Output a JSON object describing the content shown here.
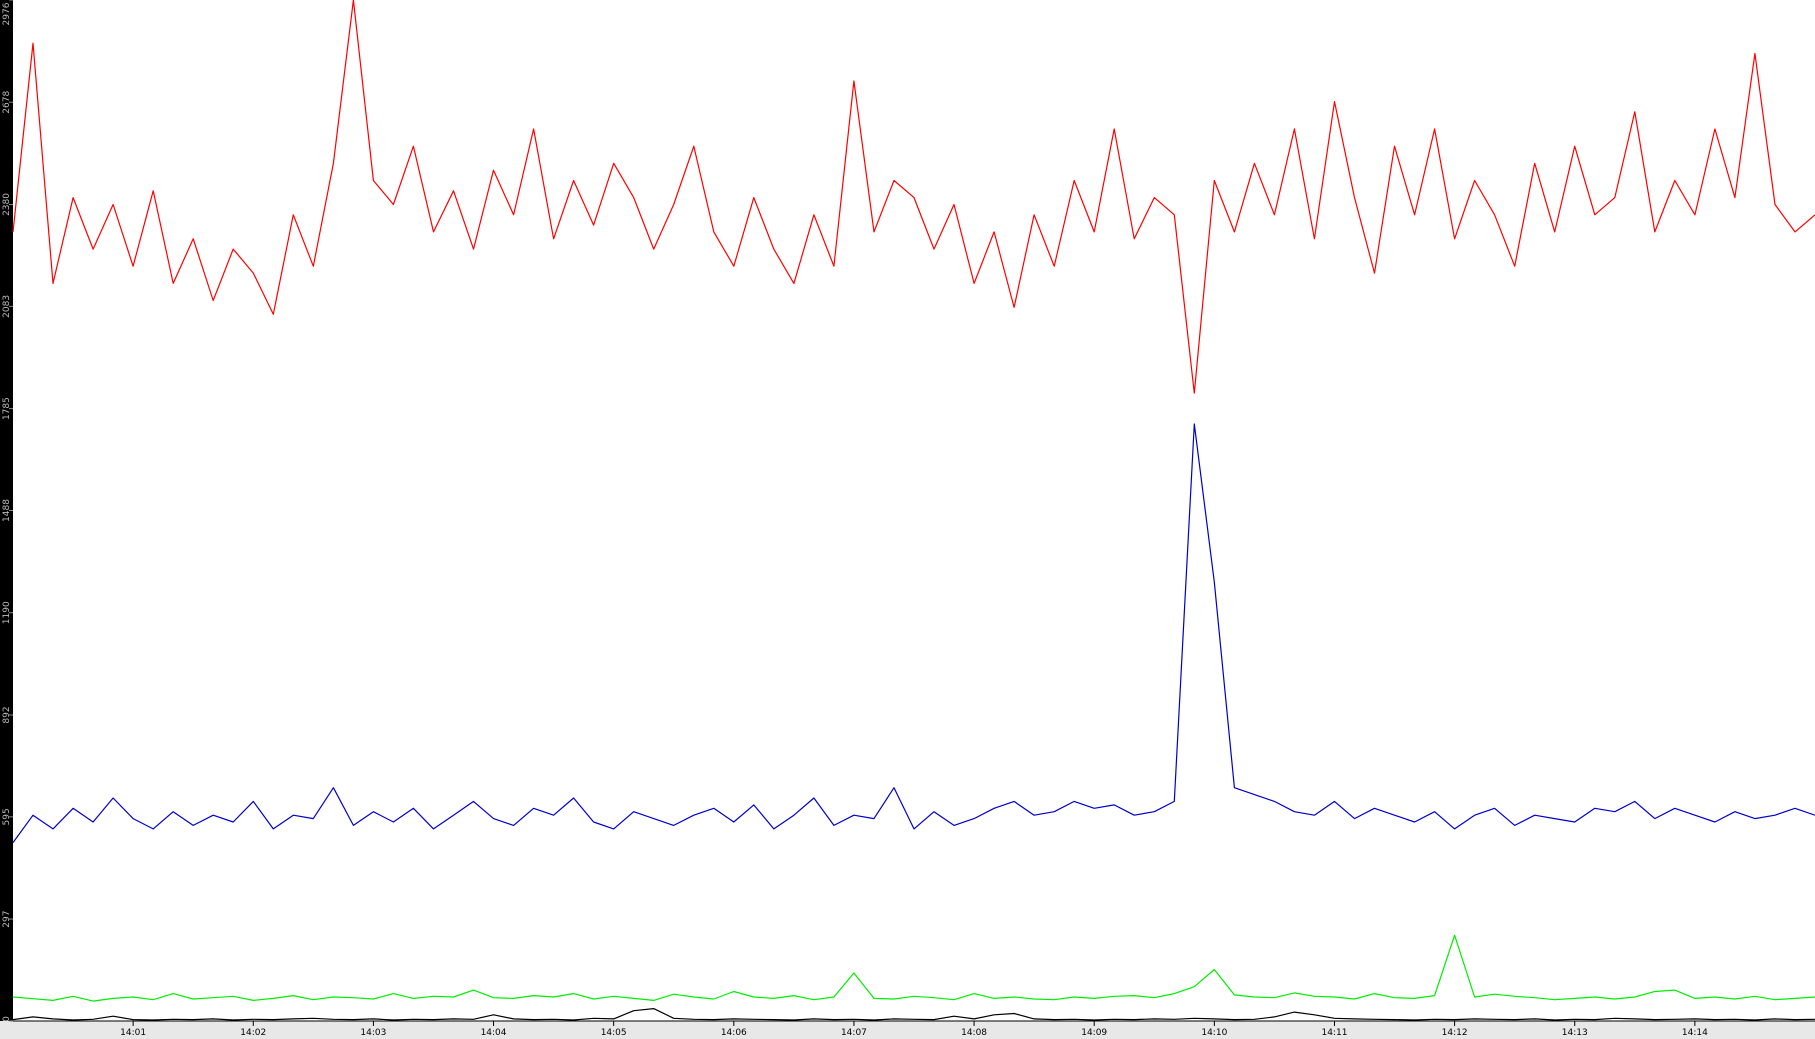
{
  "chart_data": {
    "type": "line",
    "xlim": [
      "14:00",
      "14:15"
    ],
    "xticks": [
      "14:01",
      "14:02",
      "14:03",
      "14:04",
      "14:05",
      "14:06",
      "14:07",
      "14:08",
      "14:09",
      "14:10",
      "14:11",
      "14:12",
      "14:13",
      "14:14"
    ],
    "ylim": [
      0,
      2976
    ],
    "yticks": [
      0,
      297,
      595,
      892,
      1190,
      1488,
      1785,
      2083,
      2380,
      2678,
      2976
    ],
    "series": [
      {
        "name": "red",
        "color": "#ff0000",
        "values": [
          2300,
          2850,
          2150,
          2400,
          2250,
          2380,
          2200,
          2420,
          2150,
          2280,
          2100,
          2250,
          2180,
          2060,
          2350,
          2200,
          2500,
          2976,
          2450,
          2380,
          2550,
          2300,
          2420,
          2250,
          2480,
          2350,
          2600,
          2280,
          2450,
          2320,
          2500,
          2400,
          2250,
          2380,
          2550,
          2300,
          2200,
          2400,
          2250,
          2150,
          2350,
          2200,
          2740,
          2300,
          2450,
          2400,
          2250,
          2380,
          2150,
          2300,
          2080,
          2350,
          2200,
          2450,
          2300,
          2600,
          2280,
          2400,
          2350,
          1830,
          2450,
          2300,
          2500,
          2350,
          2600,
          2280,
          2680,
          2400,
          2180,
          2550,
          2350,
          2600,
          2280,
          2450,
          2350,
          2200,
          2500,
          2300,
          2550,
          2350,
          2400,
          2650,
          2300,
          2450,
          2350,
          2600,
          2400,
          2820,
          2380,
          2300,
          2350
        ]
      },
      {
        "name": "blue",
        "color": "#0000cc",
        "values": [
          520,
          600,
          560,
          620,
          580,
          650,
          590,
          560,
          610,
          570,
          600,
          580,
          640,
          560,
          600,
          590,
          680,
          570,
          610,
          580,
          620,
          560,
          600,
          640,
          590,
          570,
          620,
          600,
          650,
          580,
          560,
          610,
          590,
          570,
          600,
          620,
          580,
          630,
          560,
          600,
          650,
          570,
          600,
          590,
          680,
          560,
          610,
          570,
          590,
          620,
          640,
          600,
          610,
          640,
          620,
          630,
          600,
          610,
          640,
          1740,
          1280,
          680,
          660,
          640,
          610,
          600,
          640,
          590,
          620,
          600,
          580,
          610,
          560,
          600,
          620,
          570,
          600,
          590,
          580,
          620,
          610,
          640,
          590,
          620,
          600,
          580,
          610,
          590,
          600,
          620,
          600
        ]
      },
      {
        "name": "green",
        "color": "#00ee00",
        "values": [
          70,
          65,
          60,
          72,
          58,
          66,
          70,
          62,
          80,
          64,
          68,
          72,
          60,
          66,
          74,
          62,
          70,
          68,
          64,
          80,
          66,
          72,
          70,
          90,
          68,
          66,
          74,
          70,
          80,
          64,
          72,
          66,
          60,
          78,
          70,
          64,
          86,
          70,
          66,
          74,
          62,
          70,
          140,
          66,
          64,
          72,
          68,
          62,
          80,
          66,
          70,
          64,
          62,
          70,
          66,
          72,
          74,
          68,
          80,
          100,
          150,
          76,
          70,
          68,
          82,
          72,
          70,
          64,
          80,
          68,
          66,
          74,
          250,
          70,
          78,
          72,
          68,
          62,
          66,
          70,
          64,
          70,
          86,
          90,
          66,
          70,
          64,
          72,
          62,
          66,
          70
        ]
      },
      {
        "name": "black",
        "color": "#000000",
        "values": [
          4,
          12,
          6,
          3,
          5,
          14,
          4,
          3,
          5,
          4,
          6,
          3,
          5,
          4,
          6,
          8,
          5,
          4,
          6,
          3,
          5,
          4,
          6,
          5,
          18,
          6,
          4,
          5,
          3,
          8,
          6,
          30,
          36,
          8,
          5,
          4,
          6,
          5,
          4,
          3,
          6,
          4,
          5,
          3,
          6,
          5,
          4,
          14,
          6,
          18,
          22,
          6,
          4,
          5,
          3,
          5,
          4,
          6,
          5,
          8,
          6,
          4,
          5,
          12,
          26,
          18,
          8,
          6,
          5,
          4,
          3,
          5,
          4,
          6,
          5,
          4,
          6,
          3,
          5,
          4,
          8,
          6,
          4,
          5,
          6,
          4,
          5,
          3,
          6,
          4,
          5
        ]
      }
    ]
  }
}
